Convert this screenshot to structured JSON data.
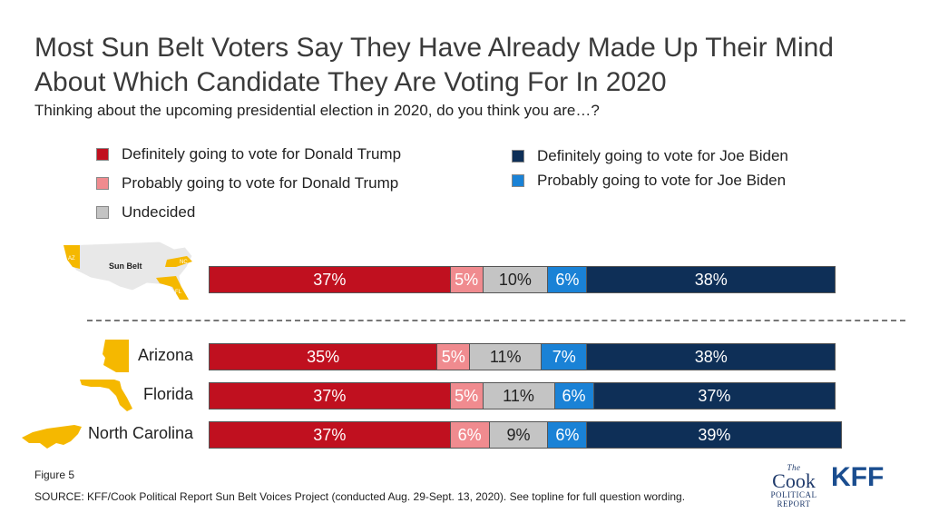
{
  "title": "Most Sun Belt Voters Say They Have Already Made Up Their Mind About Which Candidate They Are Voting For In 2020",
  "subtitle": "Thinking about the upcoming presidential election in 2020, do you think you are…?",
  "figure_label": "Figure 5",
  "source": "SOURCE: KFF/Cook Political Report Sun Belt Voices Project (conducted Aug. 29-Sept. 13, 2020). See topline for full question wording.",
  "map": {
    "label": "Sun Belt",
    "state_tags": [
      "AZ",
      "NC",
      "FL"
    ]
  },
  "logos": {
    "cook_the": "The",
    "cook_main": "Cook",
    "cook_line1": "POLITICAL",
    "cook_line2": "REPORT",
    "kff": "KFF"
  },
  "colors": {
    "definitely_trump": "#c0101f",
    "probably_trump": "#f08b8f",
    "undecided": "#c4c4c4",
    "probably_biden": "#1a82d6",
    "definitely_biden": "#0e2f57"
  },
  "chart_data": {
    "type": "bar",
    "orientation": "horizontal",
    "stacked": true,
    "normalized": true,
    "categories": [
      "Sun Belt",
      "Arizona",
      "Florida",
      "North Carolina"
    ],
    "series": [
      {
        "name": "Definitely going to vote for Donald Trump",
        "values": [
          37,
          35,
          37,
          37
        ],
        "labels": [
          "37%",
          "35%",
          "37%",
          "37%"
        ],
        "color": "#c0101f"
      },
      {
        "name": "Probably going to vote for Donald Trump",
        "values": [
          5,
          5,
          5,
          6
        ],
        "labels": [
          "5%",
          "5%",
          "5%",
          "6%"
        ],
        "color": "#f08b8f"
      },
      {
        "name": "Undecided",
        "values": [
          10,
          11,
          11,
          9
        ],
        "labels": [
          "10%",
          "11%",
          "11%",
          "9%"
        ],
        "color": "#c4c4c4"
      },
      {
        "name": "Probably going to vote for Joe Biden",
        "values": [
          6,
          7,
          6,
          6
        ],
        "labels": [
          "6%",
          "7%",
          "6%",
          "6%"
        ],
        "color": "#1a82d6"
      },
      {
        "name": "Definitely going to vote for Joe Biden",
        "values": [
          38,
          38,
          37,
          39
        ],
        "labels": [
          "38%",
          "38%",
          "37%",
          "39%"
        ],
        "color": "#0e2f57"
      }
    ],
    "row_labels": [
      "",
      "Arizona",
      "Florida",
      "North Carolina"
    ],
    "legend": [
      {
        "label": "Definitely going to vote for Donald Trump",
        "color": "#c0101f"
      },
      {
        "label": "Probably going to vote for Donald Trump",
        "color": "#f08b8f"
      },
      {
        "label": "Undecided",
        "color": "#c4c4c4"
      },
      {
        "label": "Definitely going to vote for Joe Biden",
        "color": "#0e2f57"
      },
      {
        "label": "Probably going to vote for Joe Biden",
        "color": "#1a82d6"
      }
    ],
    "legend_placement": "top",
    "grid": false,
    "xlim": [
      0,
      100
    ]
  }
}
